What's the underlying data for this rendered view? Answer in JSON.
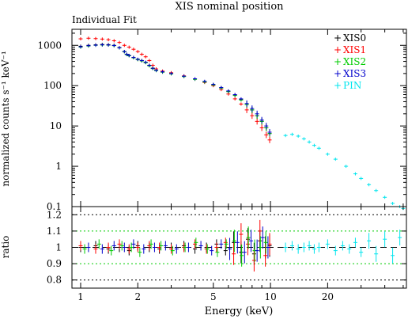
{
  "chart_data": [
    {
      "type": "scatter",
      "title": "XIS nominal position",
      "subtitle": "Individual Fit",
      "ylabel": "normalized counts s⁻¹ keV⁻¹",
      "xscale": "log",
      "yscale": "log",
      "xlim": [
        0.9,
        52
      ],
      "ylim": [
        0.1,
        2500
      ],
      "yticks": [
        0.1,
        1,
        10,
        100,
        1000
      ],
      "ytick_labels": [
        "0.1",
        "1",
        "10",
        "100",
        "1000"
      ],
      "legend_position": "top-right",
      "series": [
        {
          "name": "XIS0",
          "color": "#000000",
          "x": [
            1.0,
            1.1,
            1.2,
            1.3,
            1.4,
            1.5,
            1.6,
            1.7,
            1.75,
            1.8,
            1.9,
            2.0,
            2.1,
            2.2,
            2.3,
            2.4,
            2.5,
            2.7,
            3.0,
            3.5,
            4.0,
            4.5,
            5.0,
            5.5,
            6.0,
            6.5,
            7.0,
            7.5,
            8.0,
            8.5,
            9.0,
            9.5,
            9.9
          ],
          "y": [
            950,
            1000,
            1030,
            1050,
            1040,
            1000,
            880,
            700,
            600,
            560,
            500,
            450,
            420,
            380,
            320,
            270,
            240,
            220,
            200,
            170,
            145,
            125,
            105,
            88,
            72,
            58,
            45,
            34,
            25,
            18,
            13,
            9,
            6.5
          ]
        },
        {
          "name": "XIS1",
          "color": "#ff0000",
          "x": [
            1.0,
            1.1,
            1.2,
            1.3,
            1.4,
            1.5,
            1.6,
            1.7,
            1.8,
            1.9,
            2.0,
            2.1,
            2.2,
            2.3,
            2.4,
            2.5,
            2.7,
            3.0,
            3.5,
            4.0,
            4.5,
            5.0,
            5.5,
            6.0,
            6.5,
            7.0,
            7.5,
            8.0,
            8.5,
            9.0,
            9.5,
            9.9
          ],
          "y": [
            1450,
            1500,
            1470,
            1430,
            1380,
            1300,
            1180,
            1000,
            900,
            800,
            700,
            600,
            520,
            420,
            320,
            260,
            230,
            210,
            175,
            145,
            120,
            100,
            80,
            62,
            47,
            35,
            25,
            18,
            13,
            9,
            6,
            4.5
          ]
        },
        {
          "name": "XIS2",
          "color": "#00cc00",
          "x": [
            1.0,
            1.1,
            1.2,
            1.3,
            1.4,
            1.5,
            1.6,
            1.7,
            1.75,
            1.8,
            1.9,
            2.0,
            2.1,
            2.2,
            2.3,
            2.4,
            2.5,
            2.7,
            3.0,
            3.5,
            4.0,
            4.5,
            5.0,
            5.5,
            6.0,
            6.5,
            7.0,
            7.5,
            8.0,
            8.5,
            9.0,
            9.5,
            9.9
          ],
          "y": [
            900,
            960,
            1000,
            1020,
            1010,
            980,
            860,
            690,
            590,
            550,
            490,
            440,
            410,
            370,
            310,
            265,
            235,
            215,
            195,
            168,
            143,
            123,
            104,
            87,
            71,
            57,
            44,
            34,
            25,
            18,
            13,
            9,
            6.5
          ]
        },
        {
          "name": "XIS3",
          "color": "#0000cc",
          "x": [
            1.0,
            1.1,
            1.2,
            1.3,
            1.4,
            1.5,
            1.6,
            1.7,
            1.75,
            1.8,
            1.9,
            2.0,
            2.1,
            2.2,
            2.3,
            2.4,
            2.5,
            2.7,
            3.0,
            3.5,
            4.0,
            4.5,
            5.0,
            5.5,
            6.0,
            6.5,
            7.0,
            7.5,
            8.0,
            8.5,
            9.0,
            9.5,
            9.9
          ],
          "y": [
            920,
            980,
            1010,
            1030,
            1020,
            990,
            870,
            700,
            600,
            560,
            500,
            450,
            420,
            380,
            320,
            270,
            240,
            220,
            200,
            172,
            148,
            128,
            108,
            90,
            74,
            60,
            47,
            36,
            27,
            20,
            14,
            10,
            7
          ]
        },
        {
          "name": "PIN",
          "color": "#00e5ee",
          "x": [
            12,
            13,
            14,
            15,
            16,
            17,
            18,
            20,
            22,
            25,
            28,
            30,
            33,
            36,
            40,
            44,
            48,
            50
          ],
          "y": [
            5.8,
            6.2,
            5.6,
            4.8,
            4.0,
            3.3,
            2.8,
            2.0,
            1.5,
            1.0,
            0.65,
            0.5,
            0.35,
            0.25,
            0.17,
            0.12,
            0.1,
            0.09
          ]
        }
      ]
    },
    {
      "type": "scatter",
      "xlabel": "Energy (keV)",
      "ylabel": "ratio",
      "xscale": "log",
      "xlim": [
        0.9,
        52
      ],
      "ylim": [
        0.75,
        1.25
      ],
      "xticks": [
        1,
        2,
        5,
        10,
        20
      ],
      "xtick_labels": [
        "1",
        "2",
        "5",
        "10",
        "20"
      ],
      "yticks": [
        0.8,
        0.9,
        1,
        1.1,
        1.2
      ],
      "ytick_labels": [
        "0.8",
        "0.9",
        "1",
        "1.1",
        "1.2"
      ],
      "reference_lines": [
        {
          "y": 0.8,
          "color": "#000000"
        },
        {
          "y": 0.9,
          "color": "#00cc00"
        },
        {
          "y": 1.0,
          "color": "#000000"
        },
        {
          "y": 1.1,
          "color": "#00cc00"
        },
        {
          "y": 1.2,
          "color": "#000000"
        }
      ],
      "series": [
        {
          "name": "XIS0",
          "color": "#000000",
          "x": [
            1.0,
            1.2,
            1.4,
            1.6,
            1.8,
            2.0,
            2.3,
            2.6,
            3.0,
            3.5,
            4.0,
            4.6,
            5.2,
            5.8,
            6.4,
            7.0,
            7.6,
            8.2,
            8.8,
            9.4,
            9.9
          ],
          "y": [
            1.0,
            1.01,
            0.99,
            1.0,
            0.98,
            1.01,
            1.0,
            0.99,
            1.0,
            1.01,
            0.99,
            1.0,
            1.02,
            0.98,
            1.03,
            0.97,
            1.05,
            0.96,
            1.04,
            1.0,
            1.01
          ]
        },
        {
          "name": "XIS1",
          "color": "#ff0000",
          "x": [
            1.0,
            1.2,
            1.4,
            1.6,
            1.8,
            2.0,
            2.3,
            2.6,
            3.0,
            3.5,
            4.0,
            4.6,
            5.2,
            5.8,
            6.4,
            7.0,
            7.6,
            8.2,
            8.8,
            9.4,
            9.9
          ],
          "y": [
            1.01,
            0.99,
            1.0,
            1.02,
            0.99,
            1.0,
            1.01,
            1.0,
            0.99,
            1.0,
            1.02,
            0.99,
            1.0,
            1.03,
            0.96,
            1.08,
            1.02,
            0.92,
            1.1,
            0.95,
            1.02
          ]
        },
        {
          "name": "XIS2",
          "color": "#00cc00",
          "x": [
            1.05,
            1.25,
            1.45,
            1.65,
            1.85,
            2.05,
            2.35,
            2.65,
            3.05,
            3.55,
            4.05,
            4.65,
            5.25,
            5.85,
            6.45,
            7.05,
            7.65,
            8.25,
            8.85,
            9.45
          ],
          "y": [
            0.99,
            1.02,
            0.98,
            1.01,
            1.0,
            0.97,
            1.02,
            1.01,
            0.98,
            1.0,
            1.03,
            0.99,
            0.97,
            1.02,
            1.04,
            0.95,
            1.06,
            0.98,
            1.0,
            1.03
          ]
        },
        {
          "name": "XIS3",
          "color": "#0000cc",
          "x": [
            1.1,
            1.3,
            1.5,
            1.7,
            1.9,
            2.15,
            2.45,
            2.8,
            3.2,
            3.7,
            4.3,
            4.9,
            5.5,
            6.1,
            6.7,
            7.3,
            7.9,
            8.5,
            9.1,
            9.7
          ],
          "y": [
            1.0,
            0.99,
            1.01,
            1.0,
            1.02,
            0.99,
            1.0,
            1.01,
            0.99,
            1.0,
            1.01,
            0.98,
            1.02,
            0.99,
            1.03,
            0.97,
            1.04,
            0.98,
            1.06,
            1.0
          ]
        },
        {
          "name": "PIN",
          "color": "#00e5ee",
          "x": [
            12,
            13,
            14,
            15,
            16,
            17,
            18,
            20,
            22,
            24,
            26,
            28,
            30,
            33,
            36,
            40,
            44,
            48
          ],
          "y": [
            1.0,
            1.01,
            0.99,
            1.0,
            1.01,
            0.99,
            1.0,
            1.02,
            0.98,
            1.01,
            0.99,
            1.03,
            0.97,
            1.04,
            0.96,
            1.05,
            0.95,
            1.06
          ]
        }
      ]
    }
  ]
}
